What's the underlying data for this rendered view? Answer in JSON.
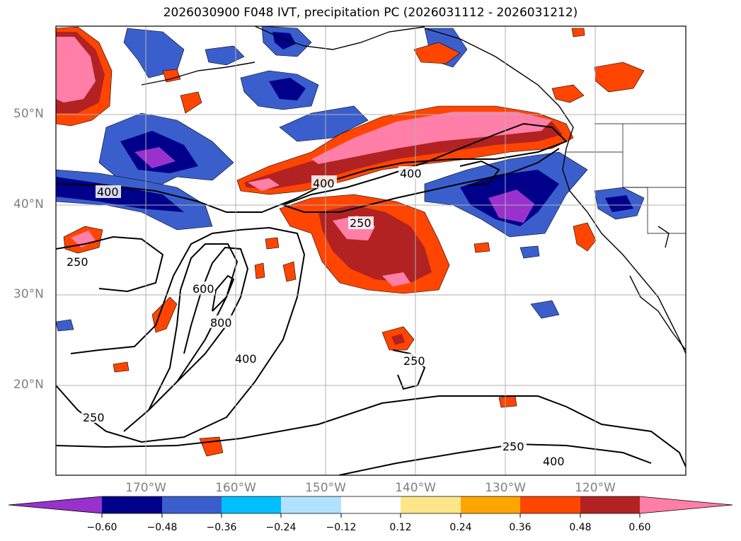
{
  "title": "2026030900 F048 IVT, precipitation PC (2026031112 - 2026031212)",
  "map": {
    "lat_labels": [
      "50°N",
      "40°N",
      "30°N",
      "20°N"
    ],
    "lon_labels": [
      "170°W",
      "160°W",
      "150°W",
      "140°W",
      "130°W",
      "120°W"
    ],
    "ivt_contour_labels": [
      "400",
      "400",
      "400",
      "250",
      "250",
      "600",
      "800",
      "400",
      "250",
      "250",
      "250",
      "400"
    ]
  },
  "colorbar": {
    "ticks": [
      "−0.60",
      "−0.48",
      "−0.36",
      "−0.24",
      "−0.12",
      "0.12",
      "0.24",
      "0.36",
      "0.48",
      "0.60"
    ],
    "colors": [
      "#9932cc",
      "#00008b",
      "#3a5fcd",
      "#00bfff",
      "#b0e2ff",
      "#ffffff",
      "#fde68a",
      "#ffa500",
      "#ff4500",
      "#b22222",
      "#ff7fa8"
    ]
  },
  "colors": {
    "grid": "#b0b0b0",
    "label": "#808080",
    "coast": "#000000"
  }
}
